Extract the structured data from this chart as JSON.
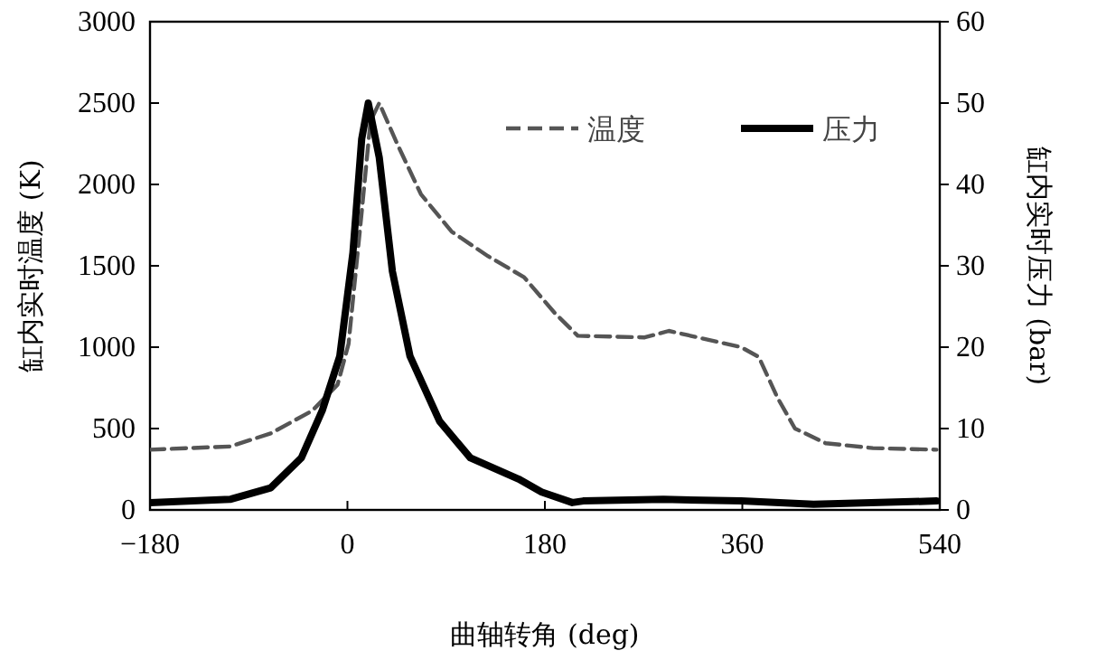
{
  "chart_data": {
    "type": "line",
    "xlabel": "曲轴转角 (deg)",
    "ylabel": "缸内实时温度 (K)",
    "y2label": "缸内实时压力 (bar)",
    "xlim": [
      -180,
      540
    ],
    "xticks": [
      -180,
      0,
      180,
      360,
      540
    ],
    "ylim": [
      0,
      3000
    ],
    "yticks": [
      0,
      500,
      1000,
      1500,
      2000,
      2500,
      3000
    ],
    "y2lim": [
      0,
      60
    ],
    "y2ticks": [
      0,
      10,
      20,
      30,
      40,
      50,
      60
    ],
    "legend": "top right",
    "series": [
      {
        "name": "温度",
        "color": "#555555",
        "line_style": "dashed",
        "x": [
          -180,
          -107,
          -70,
          -32,
          -9,
          1,
          13,
          21,
          29,
          46,
          67,
          95,
          128,
          161,
          189,
          210,
          271,
          293,
          359,
          375,
          392,
          408,
          436,
          479,
          537
        ],
        "values": [
          370,
          390,
          470,
          610,
          770,
          1020,
          1830,
          2390,
          2500,
          2240,
          1940,
          1710,
          1560,
          1430,
          1210,
          1070,
          1060,
          1100,
          1000,
          940,
          690,
          500,
          410,
          380,
          370
        ]
      },
      {
        "name": "压力",
        "color": "#000000",
        "line_style": "solid",
        "axis": "y2",
        "x": [
          -180,
          -107,
          -70,
          -42,
          -23,
          -7,
          5,
          13,
          19,
          29,
          41,
          57,
          84,
          112,
          156,
          177,
          205,
          215,
          288,
          359,
          425,
          537
        ],
        "values": [
          0.9,
          1.3,
          2.7,
          6.4,
          12.2,
          18.9,
          31.6,
          45.6,
          50,
          43.3,
          29.3,
          18.9,
          10.9,
          6.4,
          3.8,
          2.2,
          0.9,
          1.1,
          1.3,
          1.1,
          0.7,
          1.1
        ]
      }
    ]
  }
}
